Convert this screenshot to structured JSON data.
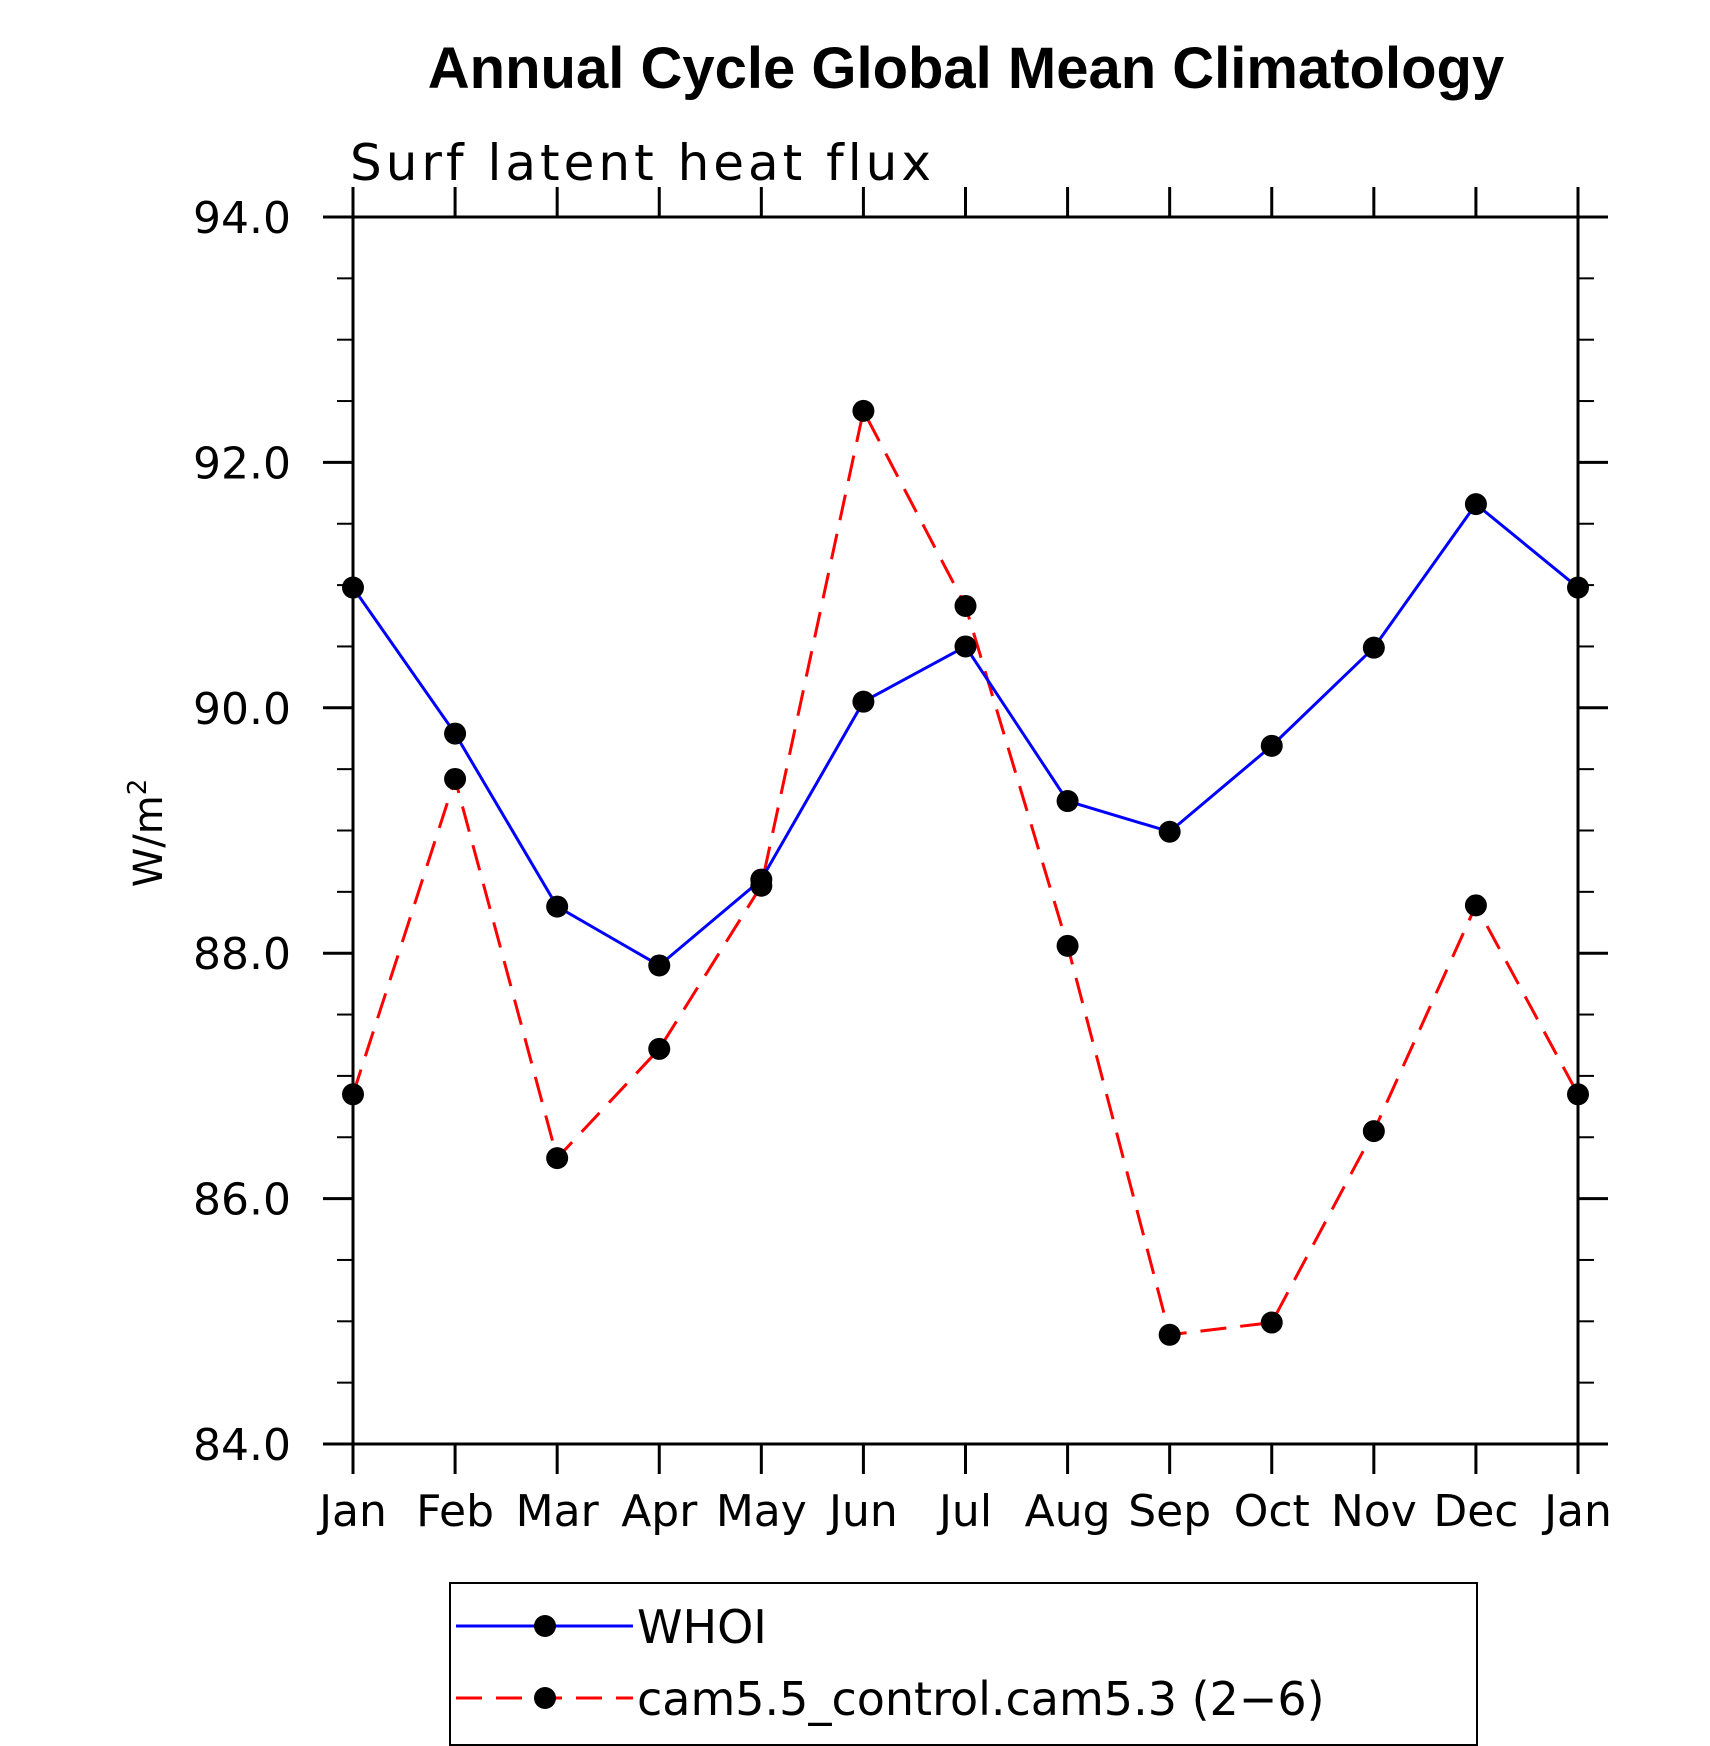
{
  "chart_data": {
    "type": "line",
    "title": "Annual Cycle Global Mean Climatology",
    "subtitle": "Surf latent heat flux",
    "ylabel_base": "W/m",
    "ylabel_sup": "2",
    "ylim": [
      84.0,
      94.0
    ],
    "yticks": [
      "84.0",
      "86.0",
      "88.0",
      "90.0",
      "92.0",
      "94.0"
    ],
    "categories": [
      "Jan",
      "Feb",
      "Mar",
      "Apr",
      "May",
      "Jun",
      "Jul",
      "Aug",
      "Sep",
      "Oct",
      "Nov",
      "Dec",
      "Jan"
    ],
    "grid": false,
    "legend_position": "bottom",
    "series": [
      {
        "name": "WHOI",
        "color": "#0000ff",
        "dashed": false,
        "values": [
          90.98,
          89.79,
          88.38,
          87.9,
          88.6,
          90.05,
          90.5,
          89.24,
          88.99,
          89.69,
          90.49,
          91.66,
          90.98
        ]
      },
      {
        "name": "cam5.5_control.cam5.3 (2−6)",
        "color": "#ff0000",
        "dashed": true,
        "values": [
          86.85,
          89.42,
          86.33,
          87.22,
          88.55,
          92.42,
          90.83,
          88.06,
          84.89,
          84.99,
          86.55,
          88.39,
          86.85
        ]
      }
    ]
  }
}
